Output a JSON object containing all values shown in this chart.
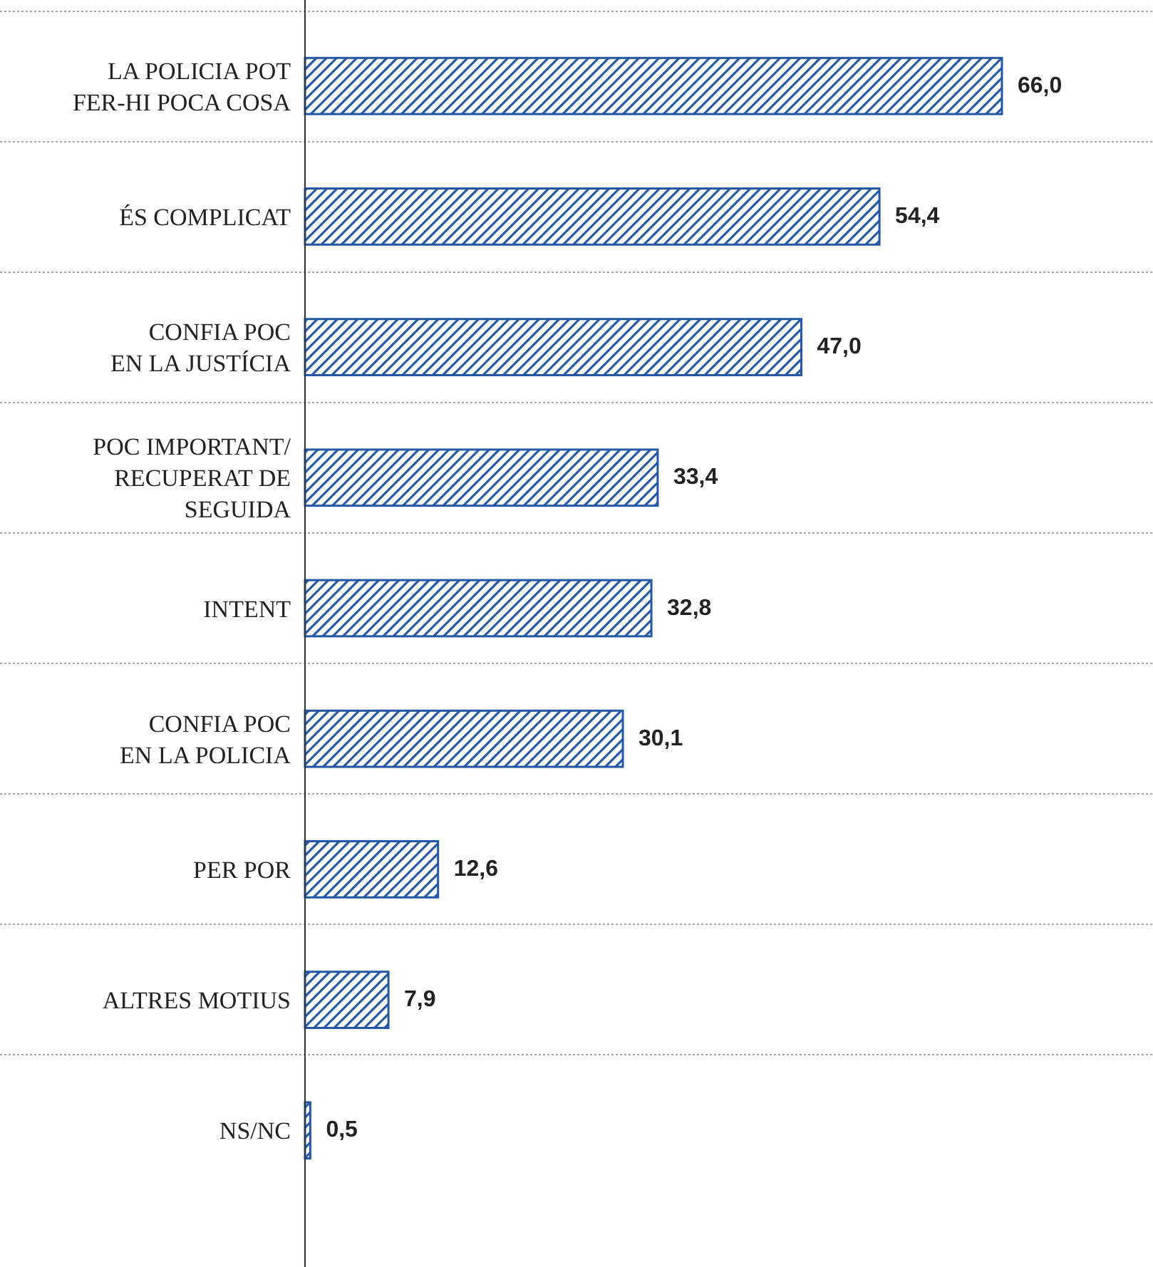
{
  "chart_data": {
    "type": "bar",
    "orientation": "horizontal",
    "categories": [
      "LA POLICIA POT\nFER-HI POCA COSA",
      "ÉS COMPLICAT",
      "CONFIA POC\nEN LA JUSTÍCIA",
      "POC IMPORTANT/\nRECUPERAT DE\nSEGUIDA",
      "INTENT",
      "CONFIA POC\nEN LA POLICIA",
      "PER POR",
      "ALTRES MOTIUS",
      "NS/NC"
    ],
    "values": [
      66.0,
      54.4,
      47.0,
      33.4,
      32.8,
      30.1,
      12.6,
      7.9,
      0.5
    ],
    "value_labels": [
      "66,0",
      "54,4",
      "47,0",
      "33,4",
      "32,8",
      "30,1",
      "12,6",
      "7,9",
      "0,5"
    ],
    "color": "#2457a5",
    "grid": "y"
  }
}
